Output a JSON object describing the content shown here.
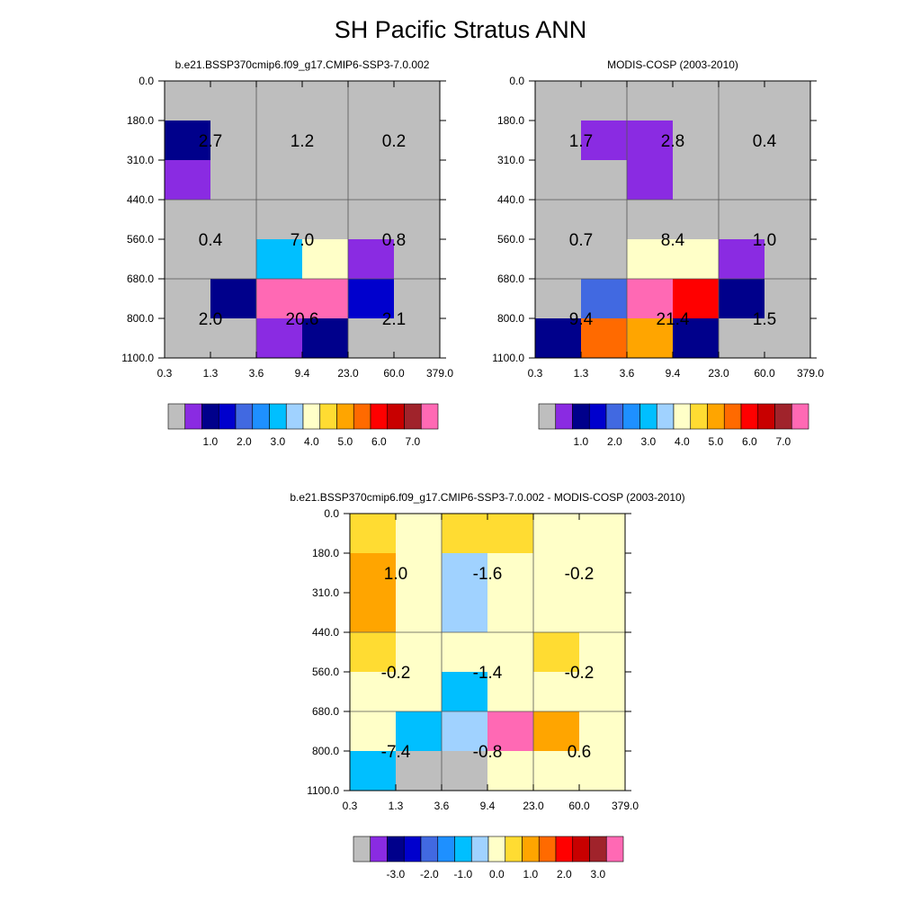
{
  "figure_title": "SH Pacific Stratus ANN",
  "chart_data": [
    {
      "type": "heatmap",
      "title": "b.e21.BSSP370cmip6.f09_g17.CMIP6-SSP3-7.0.002",
      "x_ticks": [
        "0.3",
        "1.3",
        "3.6",
        "9.4",
        "23.0",
        "60.0",
        "379.0"
      ],
      "y_ticks": [
        "0.0",
        "180.0",
        "310.0",
        "440.0",
        "560.0",
        "680.0",
        "800.0",
        "1100.0"
      ],
      "cell_colors": [
        [
          0,
          0,
          0,
          0,
          0,
          0
        ],
        [
          2,
          0,
          0,
          0,
          0,
          0
        ],
        [
          1,
          0,
          0,
          0,
          0,
          0
        ],
        [
          0,
          0,
          0,
          0,
          0,
          0
        ],
        [
          0,
          0,
          6,
          8,
          1,
          0
        ],
        [
          0,
          2,
          15,
          15,
          3,
          0
        ],
        [
          0,
          0,
          1,
          2,
          0,
          0
        ]
      ],
      "block_labels": [
        [
          "2.7",
          "1.2",
          "0.2"
        ],
        [
          "0.4",
          "7.0",
          "0.8"
        ],
        [
          "2.0",
          "20.6",
          "2.1"
        ]
      ],
      "legend_labels": [
        "1.0",
        "2.0",
        "3.0",
        "4.0",
        "5.0",
        "6.0",
        "7.0"
      ]
    },
    {
      "type": "heatmap",
      "title": "MODIS-COSP (2003-2010)",
      "x_ticks": [
        "0.3",
        "1.3",
        "3.6",
        "9.4",
        "23.0",
        "60.0",
        "379.0"
      ],
      "y_ticks": [
        "0.0",
        "180.0",
        "310.0",
        "440.0",
        "560.0",
        "680.0",
        "800.0",
        "1100.0"
      ],
      "cell_colors": [
        [
          0,
          0,
          0,
          0,
          0,
          0
        ],
        [
          0,
          1,
          1,
          0,
          0,
          0
        ],
        [
          0,
          0,
          1,
          0,
          0,
          0
        ],
        [
          0,
          0,
          0,
          0,
          0,
          0
        ],
        [
          0,
          0,
          8,
          8,
          1,
          0
        ],
        [
          0,
          4,
          15,
          12,
          2,
          0
        ],
        [
          2,
          11,
          10,
          2,
          0,
          0
        ]
      ],
      "block_labels": [
        [
          "1.7",
          "2.8",
          "0.4"
        ],
        [
          "0.7",
          "8.4",
          "1.0"
        ],
        [
          "9.4",
          "21.4",
          "1.5"
        ]
      ],
      "legend_labels": [
        "1.0",
        "2.0",
        "3.0",
        "4.0",
        "5.0",
        "6.0",
        "7.0"
      ]
    },
    {
      "type": "heatmap",
      "title": "b.e21.BSSP370cmip6.f09_g17.CMIP6-SSP3-7.0.002 - MODIS-COSP (2003-2010)",
      "x_ticks": [
        "0.3",
        "1.3",
        "3.6",
        "9.4",
        "23.0",
        "60.0",
        "379.0"
      ],
      "y_ticks": [
        "0.0",
        "180.0",
        "310.0",
        "440.0",
        "560.0",
        "680.0",
        "800.0",
        "1100.0"
      ],
      "cell_colors": [
        [
          9,
          8,
          9,
          9,
          8,
          8
        ],
        [
          10,
          8,
          7,
          8,
          8,
          8
        ],
        [
          10,
          8,
          7,
          8,
          8,
          8
        ],
        [
          9,
          8,
          8,
          8,
          9,
          8
        ],
        [
          8,
          8,
          6,
          8,
          8,
          8
        ],
        [
          8,
          6,
          7,
          15,
          10,
          8
        ],
        [
          6,
          0,
          0,
          8,
          8,
          8
        ]
      ],
      "block_labels": [
        [
          "1.0",
          "-1.6",
          "-0.2"
        ],
        [
          "-0.2",
          "-1.4",
          "-0.2"
        ],
        [
          "-7.4",
          "-0.8",
          "0.6"
        ]
      ],
      "legend_labels": [
        "-3.0",
        "-2.0",
        "-1.0",
        "0.0",
        "1.0",
        "2.0",
        "3.0"
      ]
    }
  ],
  "palette": [
    "#bebebe",
    "#8a2be2",
    "#00008b",
    "#0000cd",
    "#4169e1",
    "#1e90ff",
    "#00bfff",
    "#a0d2ff",
    "#ffffc8",
    "#ffdc32",
    "#ffa500",
    "#ff6a00",
    "#ff0000",
    "#c80000",
    "#a0232b",
    "#ff69b4"
  ]
}
